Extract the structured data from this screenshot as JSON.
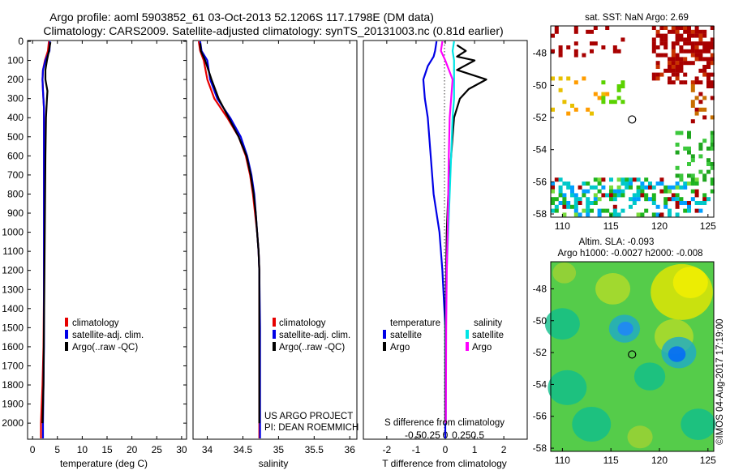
{
  "header": {
    "title_line1": "Argo profile: aoml 5903852_61 03-Oct-2013 52.1206S 117.1798E (DM data)",
    "title_line2": "Climatology: CARS2009. Satellite-adjusted climatology: synTS_20131003.nc (0.81d earlier)"
  },
  "colors": {
    "climatology": "#e60000",
    "satellite": "#0000e6",
    "argo": "#000000",
    "sat_salinity": "#00e5e5",
    "argo_salinity": "#ff00ff"
  },
  "chart_data": [
    {
      "id": "temperature",
      "type": "line",
      "xlabel": "temperature (deg C)",
      "ylabel": "",
      "xlim": [
        -1,
        31
      ],
      "ylim": [
        2080,
        0
      ],
      "xticks": [
        "0",
        "5",
        "10",
        "15",
        "20",
        "25",
        "30"
      ],
      "yticks": [
        "0",
        "100",
        "200",
        "300",
        "400",
        "500",
        "600",
        "700",
        "800",
        "900",
        "1000",
        "1100",
        "1200",
        "1300",
        "1400",
        "1500",
        "1600",
        "1700",
        "1800",
        "1900",
        "2000"
      ],
      "legend": [
        "climatology",
        "satellite-adj. clim.",
        "Argo(..raw -QC)"
      ],
      "series": [
        {
          "name": "climatology",
          "color": "#e60000",
          "points": [
            [
              3.3,
              0
            ],
            [
              3.1,
              50
            ],
            [
              2.5,
              100
            ],
            [
              2.1,
              150
            ],
            [
              2.0,
              200
            ],
            [
              2.1,
              260
            ],
            [
              2.3,
              350
            ],
            [
              2.3,
              500
            ],
            [
              2.3,
              700
            ],
            [
              2.3,
              1000
            ],
            [
              2.3,
              1300
            ],
            [
              2.2,
              1600
            ],
            [
              2.0,
              1800
            ],
            [
              1.7,
              2000
            ],
            [
              1.7,
              2080
            ]
          ]
        },
        {
          "name": "satellite-adj. clim.",
          "color": "#0000e6",
          "points": [
            [
              3.5,
              0
            ],
            [
              3.4,
              50
            ],
            [
              2.6,
              100
            ],
            [
              2.1,
              150
            ],
            [
              2.0,
              200
            ],
            [
              2.1,
              260
            ],
            [
              2.3,
              350
            ],
            [
              2.3,
              500
            ],
            [
              2.3,
              700
            ],
            [
              2.3,
              1000
            ],
            [
              2.3,
              1300
            ],
            [
              2.3,
              1600
            ],
            [
              2.2,
              1800
            ],
            [
              2.1,
              2000
            ],
            [
              2.1,
              2080
            ]
          ]
        },
        {
          "name": "Argo(..raw -QC)",
          "color": "#000000",
          "points": [
            [
              3.6,
              5
            ],
            [
              3.3,
              50
            ],
            [
              2.9,
              100
            ],
            [
              2.6,
              150
            ],
            [
              2.6,
              200
            ],
            [
              3.0,
              260
            ],
            [
              2.9,
              300
            ],
            [
              2.7,
              400
            ],
            [
              2.6,
              600
            ],
            [
              2.5,
              900
            ],
            [
              2.4,
              1200
            ],
            [
              2.3,
              1500
            ],
            [
              2.2,
              1800
            ],
            [
              2.0,
              2000
            ]
          ]
        }
      ]
    },
    {
      "id": "salinity",
      "type": "line",
      "xlabel": "salinity",
      "xlim": [
        33.8,
        36.1
      ],
      "ylim": [
        2080,
        0
      ],
      "xticks": [
        "34",
        "34.5",
        "35",
        "35.5",
        "36"
      ],
      "legend": [
        "climatology",
        "satellite-adj. clim.",
        "Argo(..raw -QC)"
      ],
      "annotations": [
        "US ARGO PROJECT",
        "PI: DEAN ROEMMICH"
      ],
      "series": [
        {
          "name": "climatology",
          "color": "#e60000",
          "points": [
            [
              33.88,
              0
            ],
            [
              33.9,
              50
            ],
            [
              33.95,
              100
            ],
            [
              34.0,
              200
            ],
            [
              34.1,
              300
            ],
            [
              34.28,
              400
            ],
            [
              34.44,
              500
            ],
            [
              34.54,
              600
            ],
            [
              34.6,
              700
            ],
            [
              34.64,
              800
            ],
            [
              34.67,
              900
            ],
            [
              34.7,
              1000
            ],
            [
              34.72,
              1100
            ],
            [
              34.73,
              1200
            ],
            [
              34.73,
              1500
            ],
            [
              34.73,
              2000
            ],
            [
              34.73,
              2080
            ]
          ]
        },
        {
          "name": "satellite-adj. clim.",
          "color": "#0000e6",
          "points": [
            [
              33.9,
              0
            ],
            [
              33.92,
              50
            ],
            [
              34.0,
              100
            ],
            [
              34.04,
              200
            ],
            [
              34.14,
              300
            ],
            [
              34.32,
              400
            ],
            [
              34.47,
              500
            ],
            [
              34.56,
              600
            ],
            [
              34.62,
              700
            ],
            [
              34.66,
              800
            ],
            [
              34.68,
              900
            ],
            [
              34.7,
              1000
            ],
            [
              34.72,
              1100
            ],
            [
              34.73,
              1200
            ],
            [
              34.74,
              1500
            ],
            [
              34.74,
              2000
            ],
            [
              34.74,
              2080
            ]
          ]
        },
        {
          "name": "Argo(..raw -QC)",
          "color": "#000000",
          "points": [
            [
              33.9,
              10
            ],
            [
              33.91,
              50
            ],
            [
              33.97,
              100
            ],
            [
              34.06,
              200
            ],
            [
              34.16,
              300
            ],
            [
              34.3,
              400
            ],
            [
              34.44,
              500
            ],
            [
              34.55,
              600
            ],
            [
              34.61,
              700
            ],
            [
              34.65,
              800
            ],
            [
              34.68,
              900
            ],
            [
              34.7,
              1000
            ],
            [
              34.72,
              1100
            ],
            [
              34.73,
              1200
            ],
            [
              34.73,
              1500
            ],
            [
              34.73,
              2000
            ]
          ]
        }
      ]
    },
    {
      "id": "differences",
      "type": "line",
      "xlabel": "T difference from climatology",
      "xlabel_top": "S difference from climatology",
      "xlim": [
        -2.8,
        2.8
      ],
      "ylim": [
        2080,
        0
      ],
      "xticks": [
        "-2",
        "-1",
        "0",
        "1",
        "2"
      ],
      "sticks": [
        "-0.5",
        "-0.25",
        "0",
        "0.25",
        "0.5"
      ],
      "legend_headers": [
        "temperature",
        "salinity"
      ],
      "legend": [
        "satellite",
        "Argo",
        "satellite",
        "Argo"
      ],
      "series": [
        {
          "name": "temperature satellite",
          "color": "#0000e6",
          "points": [
            [
              -0.3,
              0
            ],
            [
              -0.35,
              50
            ],
            [
              -0.4,
              80
            ],
            [
              -0.6,
              130
            ],
            [
              -0.75,
              200
            ],
            [
              -0.7,
              300
            ],
            [
              -0.6,
              400
            ],
            [
              -0.5,
              600
            ],
            [
              -0.4,
              800
            ],
            [
              -0.2,
              1000
            ],
            [
              -0.1,
              1200
            ],
            [
              0.0,
              1500
            ],
            [
              0.0,
              2000
            ],
            [
              0.0,
              2080
            ]
          ]
        },
        {
          "name": "temperature Argo",
          "color": "#000000",
          "points": [
            [
              0.4,
              20
            ],
            [
              0.7,
              50
            ],
            [
              0.4,
              80
            ],
            [
              1.0,
              100
            ],
            [
              0.4,
              150
            ],
            [
              1.4,
              200
            ],
            [
              0.8,
              250
            ],
            [
              0.5,
              300
            ],
            [
              0.3,
              400
            ],
            [
              0.2,
              600
            ],
            [
              0.1,
              800
            ],
            [
              0.05,
              1000
            ],
            [
              0.0,
              1500
            ],
            [
              0.0,
              2000
            ]
          ]
        },
        {
          "name": "salinity satellite",
          "color": "#00e5e5",
          "points": [
            [
              0.3,
              0
            ],
            [
              0.25,
              50
            ],
            [
              0.3,
              100
            ],
            [
              0.3,
              200
            ],
            [
              0.3,
              300
            ],
            [
              0.25,
              400
            ],
            [
              0.2,
              600
            ],
            [
              0.15,
              800
            ],
            [
              0.1,
              1000
            ],
            [
              0.05,
              1200
            ],
            [
              0.02,
              1500
            ],
            [
              0.02,
              2000
            ]
          ]
        },
        {
          "name": "salinity Argo",
          "color": "#ff00ff",
          "points": [
            [
              -0.1,
              0
            ],
            [
              -0.15,
              50
            ],
            [
              0.0,
              100
            ],
            [
              0.25,
              200
            ],
            [
              0.2,
              300
            ],
            [
              0.15,
              400
            ],
            [
              0.12,
              600
            ],
            [
              0.1,
              800
            ],
            [
              0.08,
              1000
            ],
            [
              0.05,
              1200
            ],
            [
              0.03,
              1500
            ],
            [
              0.02,
              2000
            ]
          ]
        }
      ]
    },
    {
      "id": "sst-map",
      "type": "heatmap",
      "title": "sat. SST: NaN Argo: 2.69",
      "xticks": [
        "110",
        "115",
        "120",
        "125"
      ],
      "yticks": [
        "-48",
        "-50",
        "-52",
        "-54",
        "-56",
        "-58"
      ],
      "xlim": [
        108.8,
        125.6
      ],
      "ylim": [
        -58.2,
        -46.3
      ],
      "argo_position": [
        117.18,
        -52.12
      ]
    },
    {
      "id": "sla-map",
      "type": "heatmap",
      "title_line1": "Altim. SLA: -0.093",
      "title_line2": "Argo h1000: -0.0027 h2000: -0.008",
      "xticks": [
        "110",
        "115",
        "120",
        "125"
      ],
      "yticks": [
        "-48",
        "-50",
        "-52",
        "-54",
        "-56",
        "-58"
      ],
      "xlim": [
        108.8,
        125.6
      ],
      "ylim": [
        -58.2,
        -46.3
      ],
      "argo_position": [
        117.18,
        -52.12
      ],
      "credit": "©IMOS 04-Aug-2017 17:19:00"
    }
  ]
}
